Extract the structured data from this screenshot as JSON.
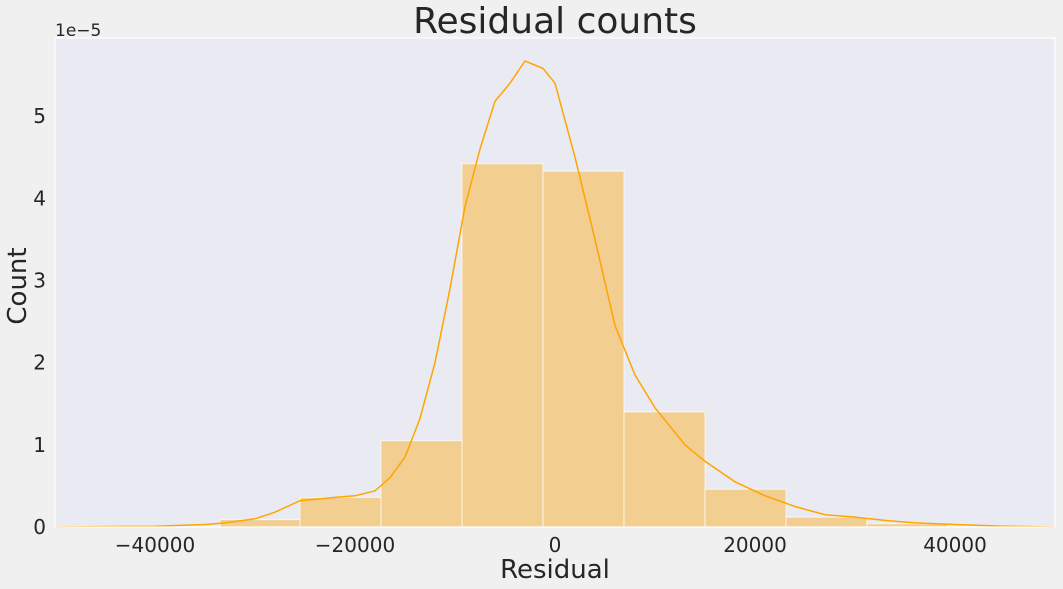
{
  "chart_data": {
    "type": "bar",
    "title": "Residual counts",
    "xlabel": "Residual",
    "ylabel": "Count",
    "y_offset_label": "1e−5",
    "xlim": [
      -50000,
      50000
    ],
    "ylim": [
      0,
      5.95
    ],
    "y_scale": "×1e-5",
    "grid": false,
    "colors": {
      "bar": "#ffa500",
      "line": "#ffa500",
      "plot_bg": "#eaeaf2",
      "page_bg": "#f0f0f0"
    },
    "x_ticks": [
      {
        "value": -40000,
        "label": "−40000"
      },
      {
        "value": -20000,
        "label": "−20000"
      },
      {
        "value": 0,
        "label": "0"
      },
      {
        "value": 20000,
        "label": "20000"
      },
      {
        "value": 40000,
        "label": "40000"
      }
    ],
    "y_ticks": [
      {
        "value": 0,
        "label": "0"
      },
      {
        "value": 1,
        "label": "1"
      },
      {
        "value": 2,
        "label": "2"
      },
      {
        "value": 3,
        "label": "3"
      },
      {
        "value": 4,
        "label": "4"
      },
      {
        "value": 5,
        "label": "5"
      }
    ],
    "histogram": {
      "bin_edges": [
        -33500,
        -25500,
        -17400,
        -9300,
        -1200,
        6900,
        15000,
        23100,
        31200,
        39300
      ],
      "values": [
        0.09,
        0.36,
        1.05,
        4.42,
        4.33,
        1.4,
        0.46,
        0.12,
        0.04
      ]
    },
    "kde": {
      "x": [
        -50000,
        -40000,
        -35000,
        -33000,
        -30000,
        -28000,
        -25500,
        -22000,
        -20000,
        -18000,
        -16500,
        -15000,
        -13500,
        -12000,
        -10500,
        -9000,
        -7500,
        -6000,
        -4500,
        -3000,
        -1200,
        0,
        2000,
        4000,
        6000,
        8000,
        10000,
        13000,
        15000,
        18000,
        21000,
        24000,
        27000,
        30000,
        33000,
        36000,
        40000,
        45000,
        50000
      ],
      "y": [
        0.0,
        0.01,
        0.03,
        0.05,
        0.1,
        0.18,
        0.32,
        0.36,
        0.38,
        0.44,
        0.6,
        0.85,
        1.32,
        2.0,
        2.9,
        3.9,
        4.6,
        5.18,
        5.4,
        5.67,
        5.58,
        5.4,
        4.5,
        3.5,
        2.45,
        1.85,
        1.45,
        1.0,
        0.8,
        0.55,
        0.38,
        0.25,
        0.15,
        0.12,
        0.08,
        0.05,
        0.03,
        0.01,
        0.0
      ]
    }
  }
}
